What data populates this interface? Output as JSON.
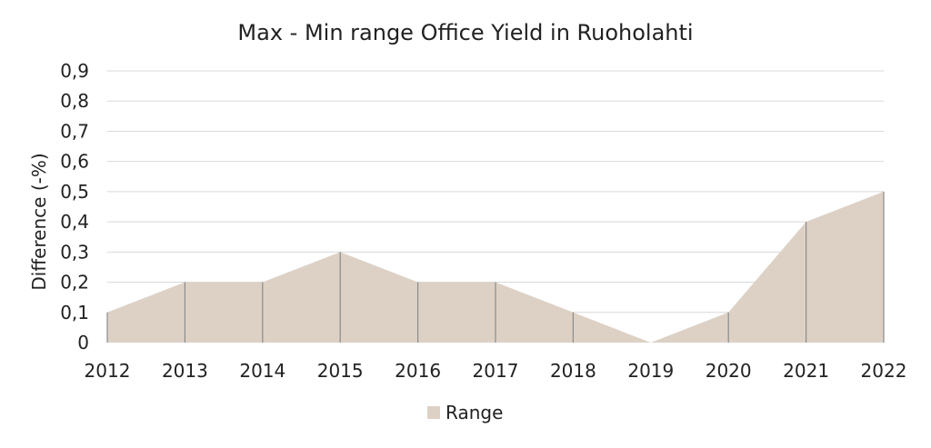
{
  "chart_data": {
    "type": "area",
    "title": "Max - Min range Office Yield in Ruoholahti",
    "xlabel": "",
    "ylabel": "Difference (-%)",
    "x": [
      "2012",
      "2013",
      "2014",
      "2015",
      "2016",
      "2017",
      "2018",
      "2019",
      "2020",
      "2021",
      "2022"
    ],
    "series": [
      {
        "name": "Range",
        "values": [
          0.1,
          0.2,
          0.2,
          0.3,
          0.2,
          0.2,
          0.1,
          0.0,
          0.1,
          0.4,
          0.5
        ]
      }
    ],
    "ylim": [
      0,
      0.9
    ],
    "yticks": [
      "0",
      "0,1",
      "0,2",
      "0,3",
      "0,4",
      "0,5",
      "0,6",
      "0,7",
      "0,8",
      "0,9"
    ],
    "grid": true,
    "legend": "bottom",
    "colors": {
      "area": "#ddd1c6",
      "grid": "#d9d9d9",
      "drop_line": "#8c8c8c"
    }
  }
}
